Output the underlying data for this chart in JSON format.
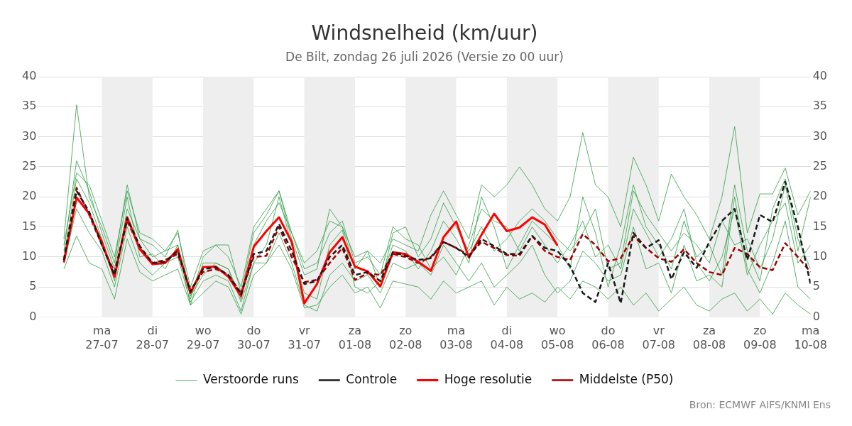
{
  "chart_data": {
    "type": "line",
    "title": "Windsnelheid (km/uur)",
    "subtitle": "De Bilt, zondag 26 juli 2026 (Versie zo 00 uur)",
    "annotations": [
      "Bron: ECMWF AIFS/KNMI Ens"
    ],
    "x": [
      "2026-07-26T06:00",
      "2026-07-26T12:00",
      "2026-07-26T18:00",
      "2026-07-27T00:00",
      "2026-07-27T06:00",
      "2026-07-27T12:00",
      "2026-07-27T18:00",
      "2026-07-28T00:00",
      "2026-07-28T06:00",
      "2026-07-28T12:00",
      "2026-07-28T18:00",
      "2026-07-29T00:00",
      "2026-07-29T06:00",
      "2026-07-29T12:00",
      "2026-07-29T18:00",
      "2026-07-30T00:00",
      "2026-07-30T06:00",
      "2026-07-30T12:00",
      "2026-07-30T18:00",
      "2026-07-31T00:00",
      "2026-07-31T06:00",
      "2026-07-31T12:00",
      "2026-07-31T18:00",
      "2026-08-01T00:00",
      "2026-08-01T06:00",
      "2026-08-01T12:00",
      "2026-08-01T18:00",
      "2026-08-02T00:00",
      "2026-08-02T06:00",
      "2026-08-02T12:00",
      "2026-08-02T18:00",
      "2026-08-03T00:00",
      "2026-08-03T06:00",
      "2026-08-03T12:00",
      "2026-08-03T18:00",
      "2026-08-04T00:00",
      "2026-08-04T06:00",
      "2026-08-04T12:00",
      "2026-08-04T18:00",
      "2026-08-05T00:00",
      "2026-08-05T06:00",
      "2026-08-05T12:00",
      "2026-08-05T18:00",
      "2026-08-06T00:00",
      "2026-08-06T06:00",
      "2026-08-06T12:00",
      "2026-08-06T18:00",
      "2026-08-07T00:00",
      "2026-08-07T06:00",
      "2026-08-07T12:00",
      "2026-08-07T18:00",
      "2026-08-08T00:00",
      "2026-08-08T06:00",
      "2026-08-08T12:00",
      "2026-08-08T18:00",
      "2026-08-09T00:00",
      "2026-08-09T06:00",
      "2026-08-09T12:00",
      "2026-08-09T18:00",
      "2026-08-10T00:00"
    ],
    "xlim": [
      "2026-07-25T18:00",
      "2026-08-10T00:00"
    ],
    "xticks": [
      {
        "value": "2026-07-27",
        "label": "ma\n27-07"
      },
      {
        "value": "2026-07-28",
        "label": "di\n28-07"
      },
      {
        "value": "2026-07-29",
        "label": "wo\n29-07"
      },
      {
        "value": "2026-07-30",
        "label": "do\n30-07"
      },
      {
        "value": "2026-07-31",
        "label": "vr\n31-07"
      },
      {
        "value": "2026-08-01",
        "label": "za\n01-08"
      },
      {
        "value": "2026-08-02",
        "label": "zo\n02-08"
      },
      {
        "value": "2026-08-03",
        "label": "ma\n03-08"
      },
      {
        "value": "2026-08-04",
        "label": "di\n04-08"
      },
      {
        "value": "2026-08-05",
        "label": "wo\n05-08"
      },
      {
        "value": "2026-08-06",
        "label": "do\n06-08"
      },
      {
        "value": "2026-08-07",
        "label": "vr\n07-08"
      },
      {
        "value": "2026-08-08",
        "label": "za\n08-08"
      },
      {
        "value": "2026-08-09",
        "label": "zo\n09-08"
      },
      {
        "value": "2026-08-10",
        "label": "ma\n10-08"
      }
    ],
    "ylim": [
      0,
      40
    ],
    "yticks": [
      0,
      5,
      10,
      15,
      20,
      25,
      30,
      35,
      40
    ],
    "y2lim": [
      0,
      40
    ],
    "y2ticks": [
      0,
      5,
      10,
      15,
      20,
      25,
      30,
      35,
      40
    ],
    "grid": "y",
    "legend": "bottom",
    "marker": "none",
    "bands": [
      {
        "axis": "x",
        "from": "2026-07-27",
        "to": "2026-07-28",
        "color": "#eeeeee"
      },
      {
        "axis": "x",
        "from": "2026-07-29",
        "to": "2026-07-30",
        "color": "#eeeeee"
      },
      {
        "axis": "x",
        "from": "2026-07-31",
        "to": "2026-08-01",
        "color": "#eeeeee"
      },
      {
        "axis": "x",
        "from": "2026-08-02",
        "to": "2026-08-03",
        "color": "#eeeeee"
      },
      {
        "axis": "x",
        "from": "2026-08-04",
        "to": "2026-08-05",
        "color": "#eeeeee"
      },
      {
        "axis": "x",
        "from": "2026-08-06",
        "to": "2026-08-07",
        "color": "#eeeeee"
      },
      {
        "axis": "x",
        "from": "2026-08-08",
        "to": "2026-08-09",
        "color": "#eeeeee"
      }
    ],
    "series": [
      {
        "name": "Verstoorde runs",
        "color": "#2e9e44",
        "line_style": "solid",
        "values": [
          13,
          35.3,
          20,
          15,
          9,
          22,
          13,
          12,
          10,
          14.5,
          3,
          10,
          12,
          10,
          5,
          15,
          18,
          21,
          14,
          9,
          11,
          16,
          15,
          10,
          11,
          9,
          13,
          12,
          11,
          17,
          21,
          17,
          13,
          22,
          20,
          22,
          25,
          22,
          18,
          16,
          20,
          30.7,
          22,
          20,
          15,
          26.6,
          22,
          16,
          23.8,
          20,
          17,
          13,
          20,
          31.7,
          14,
          20.5,
          20.5,
          24.8,
          17,
          21
        ]
      },
      {
        "color": "#2e9e44",
        "line_style": "solid",
        "values": [
          8,
          13.5,
          9,
          8,
          3,
          13,
          7.5,
          6,
          7,
          8,
          2,
          4,
          6,
          5,
          0.5,
          7,
          9,
          12,
          8,
          1.5,
          2,
          5,
          7,
          4,
          5,
          1.5,
          6,
          5.5,
          5,
          3,
          6,
          4,
          5,
          6,
          2,
          5,
          3,
          4,
          2.5,
          5,
          3,
          6,
          5,
          3,
          5,
          2,
          4,
          1,
          3,
          5,
          2,
          1,
          3,
          4,
          1,
          3,
          0.5,
          4,
          2,
          0.5
        ]
      },
      {
        "color": "#2e9e44",
        "line_style": "solid",
        "values": [
          11,
          26,
          21,
          14,
          8,
          20,
          10,
          10.5,
          8,
          12,
          2,
          9,
          9,
          8,
          2.5,
          9,
          12,
          20,
          12,
          4,
          3,
          12,
          14.5,
          5,
          4,
          6,
          12,
          11,
          8,
          11,
          16,
          13,
          9,
          20,
          15,
          8,
          12,
          16,
          14,
          12,
          8,
          20,
          14,
          5,
          12,
          22,
          15,
          12,
          8,
          16,
          10,
          12,
          7,
          22,
          11,
          6,
          18,
          23,
          13,
          8
        ]
      },
      {
        "color": "#2e9e44",
        "line_style": "solid",
        "values": [
          10,
          23,
          19,
          13,
          6,
          18,
          13,
          10,
          11,
          12,
          3.5,
          7,
          9,
          8,
          3,
          12,
          16,
          19,
          14,
          8,
          9,
          14,
          16,
          9,
          10,
          7,
          15,
          13,
          12,
          8,
          10,
          7,
          12,
          18,
          16,
          15,
          11,
          15,
          12,
          9,
          12,
          16,
          10,
          12,
          8,
          18,
          14,
          10,
          13,
          18,
          9,
          6,
          10,
          18,
          7,
          12,
          16,
          19,
          9,
          12
        ]
      },
      {
        "color": "#2e9e44",
        "line_style": "solid",
        "values": [
          9,
          18,
          14,
          11,
          5,
          15,
          9,
          7,
          9,
          10,
          2.5,
          6,
          7,
          6,
          1,
          9,
          9,
          14,
          9,
          2,
          1,
          7,
          9,
          6,
          7,
          4,
          9,
          8,
          9,
          7,
          12,
          9,
          6,
          9,
          5,
          7,
          9,
          12,
          7,
          4,
          6,
          11,
          9,
          6,
          7,
          15,
          8,
          9,
          4,
          12,
          6,
          7,
          5,
          20,
          8,
          4,
          9,
          16,
          5,
          3
        ]
      },
      {
        "color": "#2e9e44",
        "line_style": "solid",
        "values": [
          12,
          24,
          22,
          16,
          10,
          21,
          14,
          13,
          11,
          14,
          5,
          11,
          12,
          12,
          4,
          14,
          17,
          21,
          13,
          7,
          8,
          18,
          15,
          8,
          11,
          5,
          14,
          15,
          10,
          13,
          19,
          15,
          11,
          15,
          11,
          13,
          16,
          18,
          16,
          13,
          11,
          14,
          18,
          8,
          9,
          21,
          17,
          14,
          11,
          14,
          12,
          9,
          16,
          12,
          13,
          8,
          13,
          22,
          11,
          20
        ]
      },
      {
        "name": "Controle",
        "color": "#1a1a1a",
        "line_style": "dashed",
        "values": [
          9.5,
          21,
          17.5,
          12,
          7,
          16.5,
          11.8,
          9,
          9.2,
          11,
          4.2,
          8,
          8.3,
          7,
          3.8,
          10.5,
          11,
          15.5,
          11,
          5.5,
          6,
          10,
          12,
          7,
          7.5,
          6,
          10.8,
          10.2,
          9.5,
          9.8,
          12.5,
          11.5,
          10,
          13,
          11.8,
          10.5,
          10.5,
          13.5,
          11.5,
          11,
          8.5,
          4,
          2.5,
          9,
          2.3,
          14,
          11.5,
          12.8,
          6.3,
          10.8,
          8.2,
          12.5,
          16,
          18,
          9.5,
          17,
          15.8,
          22.5,
          15,
          5.5
        ]
      },
      {
        "name": "Hoge resolutie",
        "color": "#ff0000",
        "line_style": "solid",
        "values": [
          9.1,
          19.9,
          17.2,
          12.5,
          6.7,
          16.6,
          11.3,
          8.8,
          9.0,
          11.3,
          4.0,
          8.3,
          8.4,
          6.7,
          3.5,
          11.7,
          14.3,
          16.6,
          12.5,
          2.3,
          5.5,
          10.8,
          13.3,
          8.4,
          7.6,
          5.1,
          10.8,
          10.5,
          9.2,
          7.7,
          13.3,
          15.9,
          9.9,
          13.7,
          17.2,
          14.3,
          14.9,
          16.6,
          15.4,
          11.9,
          null,
          null,
          null,
          null,
          null,
          null,
          null,
          null,
          null,
          null,
          null,
          null,
          null,
          null,
          null,
          null,
          null,
          null,
          null,
          null
        ]
      },
      {
        "name": "Middelste (P50)",
        "color": "#a00000",
        "line_style": "dashed",
        "values": [
          9.5,
          21.5,
          17,
          12,
          7.5,
          16,
          11.5,
          9,
          9.5,
          10.5,
          4.5,
          7.5,
          8,
          7,
          4,
          10,
          10.2,
          15,
          10,
          5.8,
          6.2,
          9,
          11.5,
          6.2,
          7.3,
          7,
          10.5,
          10,
          9,
          10,
          12.5,
          11.5,
          10.3,
          12.5,
          11.5,
          10.3,
          10.2,
          13.5,
          11,
          10,
          9.5,
          13.8,
          12,
          9.3,
          9.8,
          13.5,
          11.5,
          9.8,
          9.2,
          11.3,
          9,
          7.5,
          7,
          11.5,
          10.5,
          8.3,
          7.8,
          12.3,
          10,
          7.5
        ]
      }
    ]
  }
}
